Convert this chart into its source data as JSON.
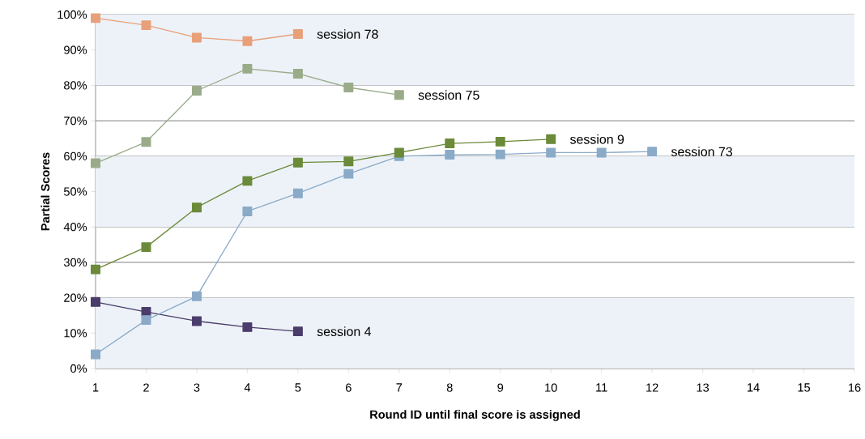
{
  "chart_data": {
    "type": "line",
    "xlabel": "Round ID until final score is assigned",
    "ylabel": "Partial Scores",
    "xlim": [
      1,
      16
    ],
    "xticks": [
      1,
      2,
      3,
      4,
      5,
      6,
      7,
      8,
      9,
      10,
      11,
      12,
      13,
      14,
      15,
      16
    ],
    "ylim": [
      0,
      100
    ],
    "yticks": [
      {
        "value": 0,
        "label": "0%"
      },
      {
        "value": 10,
        "label": "10%"
      },
      {
        "value": 20,
        "label": "20%"
      },
      {
        "value": 30,
        "label": "30%"
      },
      {
        "value": 40,
        "label": "40%"
      },
      {
        "value": 50,
        "label": "50%"
      },
      {
        "value": 60,
        "label": "60%"
      },
      {
        "value": 70,
        "label": "70%"
      },
      {
        "value": 80,
        "label": "80%"
      },
      {
        "value": 90,
        "label": "90%"
      },
      {
        "value": 100,
        "label": "100%"
      }
    ],
    "grid": "y",
    "legend": false,
    "marker": "square",
    "line_style": "solid",
    "bands": [
      {
        "axis": "y",
        "from": 0,
        "to": 20,
        "color": "#edf2f8"
      },
      {
        "axis": "y",
        "from": 40,
        "to": 60,
        "color": "#edf2f8"
      },
      {
        "axis": "y",
        "from": 80,
        "to": 100,
        "color": "#edf2f8"
      }
    ],
    "series": [
      {
        "name": "session 78",
        "color": "#e8a07a",
        "x": [
          1,
          2,
          3,
          4,
          5
        ],
        "values": [
          99,
          97,
          93.5,
          92.5,
          94.5
        ]
      },
      {
        "name": "session 75",
        "color": "#9aab8a",
        "x": [
          1,
          2,
          3,
          4,
          5,
          6,
          7
        ],
        "values": [
          58,
          64,
          78.5,
          84.7,
          83.3,
          79.4,
          77.3
        ]
      },
      {
        "name": "session 9",
        "color": "#6b8a3a",
        "x": [
          1,
          2,
          3,
          4,
          5,
          6,
          7,
          8,
          9,
          10
        ],
        "values": [
          28,
          34.3,
          45.5,
          53,
          58.2,
          58.5,
          61,
          63.6,
          64.1,
          64.8
        ]
      },
      {
        "name": "session 73",
        "color": "#8aaac8",
        "x": [
          1,
          2,
          3,
          4,
          5,
          6,
          7,
          8,
          9,
          10,
          11,
          12
        ],
        "values": [
          4,
          13.7,
          20.4,
          44.4,
          49.5,
          55,
          60,
          60.4,
          60.5,
          61,
          61,
          61.3
        ]
      },
      {
        "name": "session 4",
        "color": "#4a3d6b",
        "x": [
          1,
          2,
          3,
          4,
          5
        ],
        "values": [
          18.8,
          16,
          13.4,
          11.7,
          10.5
        ]
      }
    ]
  }
}
